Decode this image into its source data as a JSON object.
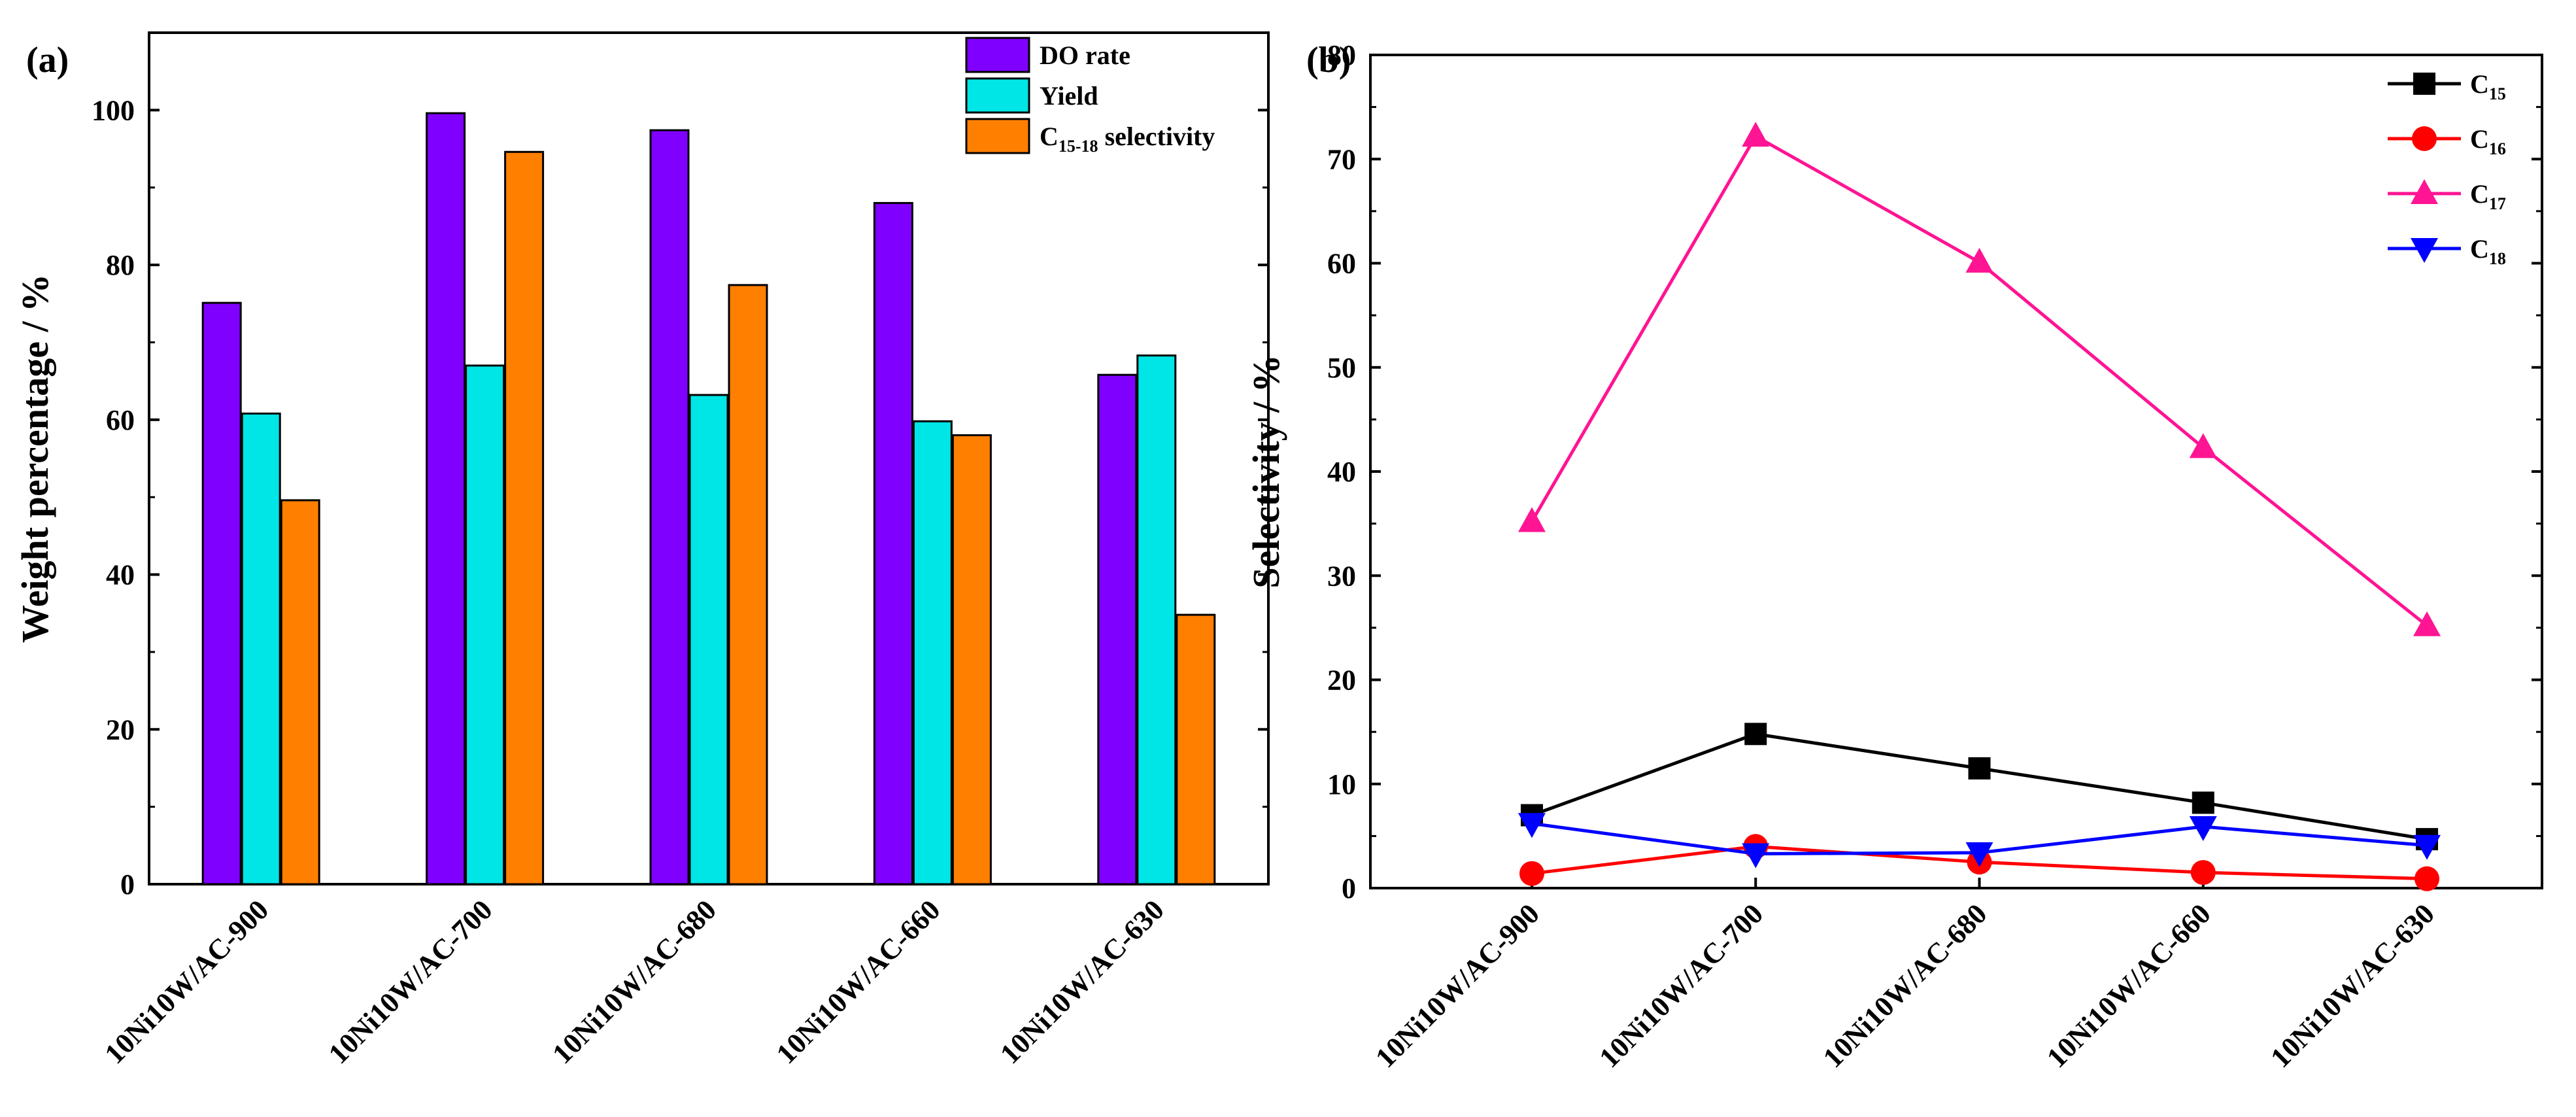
{
  "chart_data": [
    {
      "type": "bar",
      "panel_label": "(a)",
      "title": "",
      "xlabel": "",
      "ylabel": "Weight percentage / %",
      "ylim": [
        0,
        110
      ],
      "yticks": [
        0,
        20,
        40,
        60,
        80,
        100
      ],
      "legend_position": "top-right",
      "categories": [
        "10Ni10W/AC-900",
        "10Ni10W/AC-700",
        "10Ni10W/AC-680",
        "10Ni10W/AC-660",
        "10Ni10W/AC-630"
      ],
      "series": [
        {
          "name": "DO rate",
          "name_main": "DO rate",
          "name_sub": "",
          "name_tail": "",
          "color": "#8000ff",
          "values": [
            75.1,
            99.6,
            97.4,
            88.0,
            65.8
          ]
        },
        {
          "name": "Yield",
          "name_main": "Yield",
          "name_sub": "",
          "name_tail": "",
          "color": "#00e5e5",
          "values": [
            60.8,
            67.0,
            63.2,
            59.8,
            68.3
          ]
        },
        {
          "name": "C15-18 selectivity",
          "name_main": "C",
          "name_sub": "15-18",
          "name_tail": " selectivity",
          "color": "#ff7f00",
          "values": [
            49.6,
            94.6,
            77.4,
            58.0,
            34.8
          ]
        }
      ]
    },
    {
      "type": "line",
      "panel_label": "(b)",
      "title": "",
      "xlabel": "",
      "ylabel": "Selectivity / %",
      "ylim": [
        0,
        80
      ],
      "yticks": [
        0,
        10,
        20,
        30,
        40,
        50,
        60,
        70,
        80
      ],
      "legend_position": "top-right",
      "categories": [
        "10Ni10W/AC-900",
        "10Ni10W/AC-700",
        "10Ni10W/AC-680",
        "10Ni10W/AC-660",
        "10Ni10W/AC-630"
      ],
      "series": [
        {
          "name": "C15",
          "name_main": "C",
          "name_sub": "15",
          "color": "#000000",
          "marker": "square",
          "values": [
            7.0,
            14.8,
            11.5,
            8.2,
            4.7
          ]
        },
        {
          "name": "C16",
          "name_main": "C",
          "name_sub": "16",
          "color": "#ff0000",
          "marker": "circle",
          "values": [
            1.4,
            4.0,
            2.5,
            1.5,
            0.9
          ]
        },
        {
          "name": "C17",
          "name_main": "C",
          "name_sub": "17",
          "color": "#ff1493",
          "marker": "triangle-up",
          "values": [
            35.2,
            72.2,
            60.1,
            42.3,
            25.2
          ]
        },
        {
          "name": "C18",
          "name_main": "C",
          "name_sub": "18",
          "color": "#0000ff",
          "marker": "triangle-down",
          "values": [
            6.2,
            3.3,
            3.4,
            5.9,
            4.1
          ]
        }
      ]
    }
  ]
}
